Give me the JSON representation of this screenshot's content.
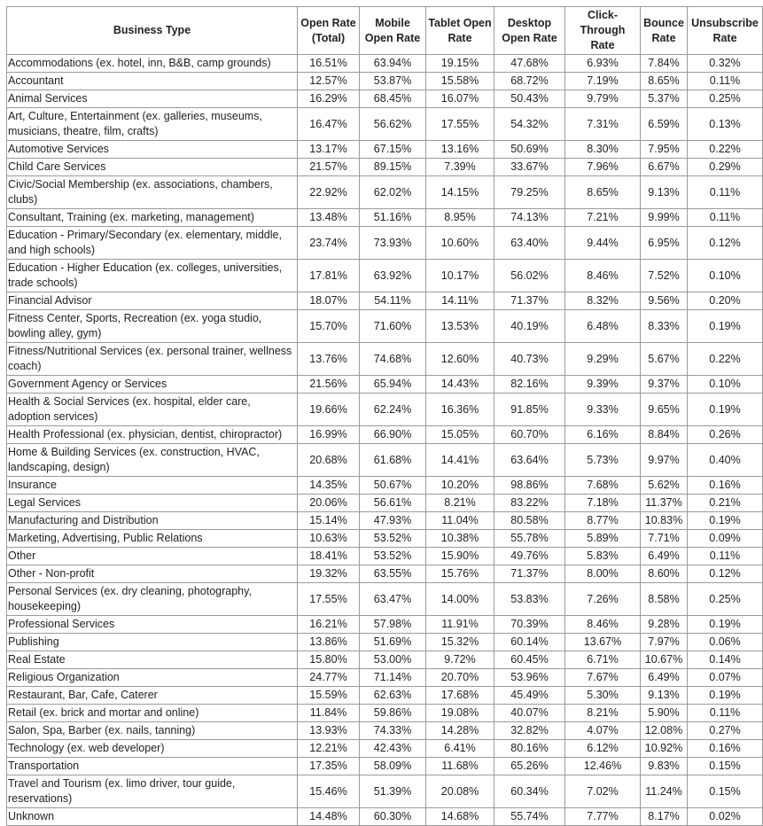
{
  "table": {
    "header": [
      "Business Type",
      "Open Rate (Total)",
      "Mobile Open Rate",
      "Tablet Open Rate",
      "Desktop Open Rate",
      "Click-Through Rate",
      "Bounce Rate",
      "Unsubscribe Rate"
    ],
    "rows": [
      [
        "Accommodations (ex. hotel, inn, B&B, camp grounds)",
        "16.51%",
        "63.94%",
        "19.15%",
        "47.68%",
        "6.93%",
        "7.84%",
        "0.32%"
      ],
      [
        "Accountant",
        "12.57%",
        "53.87%",
        "15.58%",
        "68.72%",
        "7.19%",
        "8.65%",
        "0.11%"
      ],
      [
        "Animal Services",
        "16.29%",
        "68.45%",
        "16.07%",
        "50.43%",
        "9.79%",
        "5.37%",
        "0.25%"
      ],
      [
        "Art, Culture, Entertainment (ex. galleries, museums, musicians, theatre, film, crafts)",
        "16.47%",
        "56.62%",
        "17.55%",
        "54.32%",
        "7.31%",
        "6.59%",
        "0.13%"
      ],
      [
        "Automotive Services",
        "13.17%",
        "67.15%",
        "13.16%",
        "50.69%",
        "8.30%",
        "7.95%",
        "0.22%"
      ],
      [
        "Child Care Services",
        "21.57%",
        "89.15%",
        "7.39%",
        "33.67%",
        "7.96%",
        "6.67%",
        "0.29%"
      ],
      [
        "Civic/Social Membership (ex. associations, chambers, clubs)",
        "22.92%",
        "62.02%",
        "14.15%",
        "79.25%",
        "8.65%",
        "9.13%",
        "0.11%"
      ],
      [
        "Consultant, Training (ex. marketing, management)",
        "13.48%",
        "51.16%",
        "8.95%",
        "74.13%",
        "7.21%",
        "9.99%",
        "0.11%"
      ],
      [
        "Education - Primary/Secondary (ex. elementary, middle, and high schools)",
        "23.74%",
        "73.93%",
        "10.60%",
        "63.40%",
        "9.44%",
        "6.95%",
        "0.12%"
      ],
      [
        "Education - Higher Education (ex. colleges, universities, trade schools)",
        "17.81%",
        "63.92%",
        "10.17%",
        "56.02%",
        "8.46%",
        "7.52%",
        "0.10%"
      ],
      [
        "Financial Advisor",
        "18.07%",
        "54.11%",
        "14.11%",
        "71.37%",
        "8.32%",
        "9.56%",
        "0.20%"
      ],
      [
        "Fitness Center, Sports, Recreation (ex. yoga studio, bowling alley, gym)",
        "15.70%",
        "71.60%",
        "13.53%",
        "40.19%",
        "6.48%",
        "8.33%",
        "0.19%"
      ],
      [
        "Fitness/Nutritional Services (ex. personal trainer, wellness coach)",
        "13.76%",
        "74.68%",
        "12.60%",
        "40.73%",
        "9.29%",
        "5.67%",
        "0.22%"
      ],
      [
        "Government Agency or Services",
        "21.56%",
        "65.94%",
        "14.43%",
        "82.16%",
        "9.39%",
        "9.37%",
        "0.10%"
      ],
      [
        "Health & Social Services (ex. hospital, elder care, adoption services)",
        "19.66%",
        "62.24%",
        "16.36%",
        "91.85%",
        "9.33%",
        "9.65%",
        "0.19%"
      ],
      [
        "Health Professional (ex. physician, dentist, chiropractor)",
        "16.99%",
        "66.90%",
        "15.05%",
        "60.70%",
        "6.16%",
        "8.84%",
        "0.26%"
      ],
      [
        "Home & Building Services (ex. construction, HVAC, landscaping, design)",
        "20.68%",
        "61.68%",
        "14.41%",
        "63.64%",
        "5.73%",
        "9.97%",
        "0.40%"
      ],
      [
        "Insurance",
        "14.35%",
        "50.67%",
        "10.20%",
        "98.86%",
        "7.68%",
        "5.62%",
        "0.16%"
      ],
      [
        "Legal Services",
        "20.06%",
        "56.61%",
        "8.21%",
        "83.22%",
        "7.18%",
        "11.37%",
        "0.21%"
      ],
      [
        "Manufacturing and Distribution",
        "15.14%",
        "47.93%",
        "11.04%",
        "80.58%",
        "8.77%",
        "10.83%",
        "0.19%"
      ],
      [
        "Marketing, Advertising, Public Relations",
        "10.63%",
        "53.52%",
        "10.38%",
        "55.78%",
        "5.89%",
        "7.71%",
        "0.09%"
      ],
      [
        "Other",
        "18.41%",
        "53.52%",
        "15.90%",
        "49.76%",
        "5.83%",
        "6.49%",
        "0.11%"
      ],
      [
        "Other - Non-profit",
        "19.32%",
        "63.55%",
        "15.76%",
        "71.37%",
        "8.00%",
        "8.60%",
        "0.12%"
      ],
      [
        "Personal Services (ex. dry cleaning, photography, housekeeping)",
        "17.55%",
        "63.47%",
        "14.00%",
        "53.83%",
        "7.26%",
        "8.58%",
        "0.25%"
      ],
      [
        "Professional Services",
        "16.21%",
        "57.98%",
        "11.91%",
        "70.39%",
        "8.46%",
        "9.28%",
        "0.19%"
      ],
      [
        "Publishing",
        "13.86%",
        "51.69%",
        "15.32%",
        "60.14%",
        "13.67%",
        "7.97%",
        "0.06%"
      ],
      [
        "Real Estate",
        "15.80%",
        "53.00%",
        "9.72%",
        "60.45%",
        "6.71%",
        "10.67%",
        "0.14%"
      ],
      [
        "Religious Organization",
        "24.77%",
        "71.14%",
        "20.70%",
        "53.96%",
        "7.67%",
        "6.49%",
        "0.07%"
      ],
      [
        "Restaurant, Bar, Cafe, Caterer",
        "15.59%",
        "62.63%",
        "17.68%",
        "45.49%",
        "5.30%",
        "9.13%",
        "0.19%"
      ],
      [
        "Retail (ex. brick and mortar and online)",
        "11.84%",
        "59.86%",
        "19.08%",
        "40.07%",
        "8.21%",
        "5.90%",
        "0.11%"
      ],
      [
        "Salon, Spa, Barber (ex. nails, tanning)",
        "13.93%",
        "74.33%",
        "14.28%",
        "32.82%",
        "4.07%",
        "12.08%",
        "0.27%"
      ],
      [
        "Technology (ex. web developer)",
        "12.21%",
        "42.43%",
        "6.41%",
        "80.16%",
        "6.12%",
        "10.92%",
        "0.16%"
      ],
      [
        "Transportation",
        "17.35%",
        "58.09%",
        "11.68%",
        "65.26%",
        "12.46%",
        "9.83%",
        "0.15%"
      ],
      [
        "Travel and Tourism (ex. limo driver, tour guide, reservations)",
        "15.46%",
        "51.39%",
        "20.08%",
        "60.34%",
        "7.02%",
        "11.24%",
        "0.15%"
      ],
      [
        "Unknown",
        "14.48%",
        "60.30%",
        "14.68%",
        "55.74%",
        "7.77%",
        "8.17%",
        "0.02%"
      ]
    ]
  }
}
